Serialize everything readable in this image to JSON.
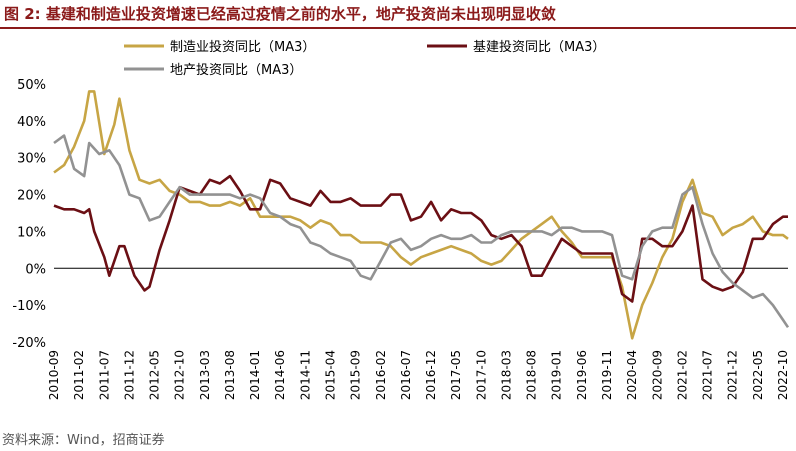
{
  "header": {
    "title": "图 2: 基建和制造业投资增速已经高过疫情之前的水平，地产投资尚未出现明显收敛"
  },
  "footer": {
    "source": "资料来源：Wind，招商证券"
  },
  "chart_data": {
    "type": "line",
    "title": "",
    "xlabel": "",
    "ylabel": "",
    "ylim": [
      -20,
      50
    ],
    "yticks": [
      "50%",
      "40%",
      "30%",
      "20%",
      "10%",
      "0%",
      "-10%",
      "-20%"
    ],
    "ytick_values": [
      50,
      40,
      30,
      20,
      10,
      0,
      -10,
      -20
    ],
    "xticks": [
      "2010-09",
      "2011-02",
      "2011-07",
      "2011-12",
      "2012-05",
      "2012-10",
      "2013-03",
      "2013-08",
      "2014-01",
      "2014-06",
      "2014-11",
      "2015-04",
      "2015-09",
      "2016-02",
      "2016-07",
      "2016-12",
      "2017-05",
      "2017-10",
      "2018-03",
      "2018-08",
      "2019-01",
      "2019-06",
      "2019-11",
      "2020-04",
      "2020-09",
      "2021-02",
      "2021-07",
      "2021-12",
      "2022-05",
      "2022-10"
    ],
    "x_start": "2010-09",
    "x_end": "2022-11",
    "legend_position": "top",
    "grid": false,
    "series": [
      {
        "name": "制造业投资同比（MA3）",
        "color": "#c7a545",
        "points": [
          [
            "2010-09",
            26
          ],
          [
            "2010-11",
            28
          ],
          [
            "2011-01",
            33
          ],
          [
            "2011-03",
            40
          ],
          [
            "2011-04",
            48
          ],
          [
            "2011-05",
            48
          ],
          [
            "2011-07",
            31
          ],
          [
            "2011-09",
            39
          ],
          [
            "2011-10",
            46
          ],
          [
            "2011-12",
            32
          ],
          [
            "2012-02",
            24
          ],
          [
            "2012-04",
            23
          ],
          [
            "2012-06",
            24
          ],
          [
            "2012-08",
            21
          ],
          [
            "2012-10",
            20
          ],
          [
            "2012-12",
            18
          ],
          [
            "2013-02",
            18
          ],
          [
            "2013-04",
            17
          ],
          [
            "2013-06",
            17
          ],
          [
            "2013-08",
            18
          ],
          [
            "2013-10",
            17
          ],
          [
            "2013-12",
            19
          ],
          [
            "2014-02",
            14
          ],
          [
            "2014-04",
            14
          ],
          [
            "2014-06",
            14
          ],
          [
            "2014-08",
            14
          ],
          [
            "2014-10",
            13
          ],
          [
            "2014-12",
            11
          ],
          [
            "2015-02",
            13
          ],
          [
            "2015-04",
            12
          ],
          [
            "2015-06",
            9
          ],
          [
            "2015-08",
            9
          ],
          [
            "2015-10",
            7
          ],
          [
            "2015-12",
            7
          ],
          [
            "2016-02",
            7
          ],
          [
            "2016-04",
            6
          ],
          [
            "2016-06",
            3
          ],
          [
            "2016-08",
            1
          ],
          [
            "2016-10",
            3
          ],
          [
            "2016-12",
            4
          ],
          [
            "2017-02",
            5
          ],
          [
            "2017-04",
            6
          ],
          [
            "2017-06",
            5
          ],
          [
            "2017-08",
            4
          ],
          [
            "2017-10",
            2
          ],
          [
            "2017-12",
            1
          ],
          [
            "2018-02",
            2
          ],
          [
            "2018-04",
            5
          ],
          [
            "2018-06",
            8
          ],
          [
            "2018-08",
            10
          ],
          [
            "2018-10",
            12
          ],
          [
            "2018-12",
            14
          ],
          [
            "2019-02",
            10
          ],
          [
            "2019-04",
            7
          ],
          [
            "2019-06",
            3
          ],
          [
            "2019-08",
            3
          ],
          [
            "2019-10",
            3
          ],
          [
            "2019-12",
            3
          ],
          [
            "2020-02",
            -5
          ],
          [
            "2020-04",
            -19
          ],
          [
            "2020-06",
            -10
          ],
          [
            "2020-08",
            -4
          ],
          [
            "2020-10",
            3
          ],
          [
            "2020-12",
            8
          ],
          [
            "2021-02",
            18
          ],
          [
            "2021-04",
            24
          ],
          [
            "2021-06",
            15
          ],
          [
            "2021-08",
            14
          ],
          [
            "2021-10",
            9
          ],
          [
            "2021-12",
            11
          ],
          [
            "2022-02",
            12
          ],
          [
            "2022-04",
            14
          ],
          [
            "2022-06",
            10
          ],
          [
            "2022-08",
            9
          ],
          [
            "2022-10",
            9
          ],
          [
            "2022-11",
            8
          ]
        ]
      },
      {
        "name": "基建投资同比（MA3）",
        "color": "#6b0f14",
        "points": [
          [
            "2010-09",
            17
          ],
          [
            "2010-11",
            16
          ],
          [
            "2011-01",
            16
          ],
          [
            "2011-03",
            15
          ],
          [
            "2011-04",
            16
          ],
          [
            "2011-05",
            10
          ],
          [
            "2011-07",
            3
          ],
          [
            "2011-08",
            -2
          ],
          [
            "2011-10",
            6
          ],
          [
            "2011-11",
            6
          ],
          [
            "2012-01",
            -2
          ],
          [
            "2012-03",
            -6
          ],
          [
            "2012-04",
            -5
          ],
          [
            "2012-06",
            5
          ],
          [
            "2012-08",
            13
          ],
          [
            "2012-10",
            22
          ],
          [
            "2012-12",
            21
          ],
          [
            "2013-02",
            20
          ],
          [
            "2013-04",
            24
          ],
          [
            "2013-06",
            23
          ],
          [
            "2013-08",
            25
          ],
          [
            "2013-10",
            21
          ],
          [
            "2013-12",
            16
          ],
          [
            "2014-02",
            16
          ],
          [
            "2014-04",
            24
          ],
          [
            "2014-06",
            23
          ],
          [
            "2014-08",
            19
          ],
          [
            "2014-10",
            18
          ],
          [
            "2014-12",
            17
          ],
          [
            "2015-02",
            21
          ],
          [
            "2015-04",
            18
          ],
          [
            "2015-06",
            18
          ],
          [
            "2015-08",
            19
          ],
          [
            "2015-10",
            17
          ],
          [
            "2015-12",
            17
          ],
          [
            "2016-02",
            17
          ],
          [
            "2016-04",
            20
          ],
          [
            "2016-06",
            20
          ],
          [
            "2016-08",
            13
          ],
          [
            "2016-10",
            14
          ],
          [
            "2016-12",
            18
          ],
          [
            "2017-02",
            13
          ],
          [
            "2017-04",
            16
          ],
          [
            "2017-06",
            15
          ],
          [
            "2017-08",
            15
          ],
          [
            "2017-10",
            13
          ],
          [
            "2017-12",
            9
          ],
          [
            "2018-02",
            8
          ],
          [
            "2018-04",
            9
          ],
          [
            "2018-06",
            6
          ],
          [
            "2018-08",
            -2
          ],
          [
            "2018-10",
            -2
          ],
          [
            "2018-12",
            3
          ],
          [
            "2019-02",
            8
          ],
          [
            "2019-04",
            6
          ],
          [
            "2019-06",
            4
          ],
          [
            "2019-08",
            4
          ],
          [
            "2019-10",
            4
          ],
          [
            "2019-12",
            4
          ],
          [
            "2020-02",
            -7
          ],
          [
            "2020-04",
            -9
          ],
          [
            "2020-06",
            8
          ],
          [
            "2020-08",
            8
          ],
          [
            "2020-10",
            6
          ],
          [
            "2020-12",
            6
          ],
          [
            "2021-02",
            10
          ],
          [
            "2021-04",
            17
          ],
          [
            "2021-06",
            -3
          ],
          [
            "2021-08",
            -5
          ],
          [
            "2021-10",
            -6
          ],
          [
            "2021-12",
            -5
          ],
          [
            "2022-02",
            -1
          ],
          [
            "2022-04",
            8
          ],
          [
            "2022-06",
            8
          ],
          [
            "2022-08",
            12
          ],
          [
            "2022-10",
            14
          ],
          [
            "2022-11",
            14
          ]
        ]
      },
      {
        "name": "地产投资同比（MA3）",
        "color": "#929292",
        "points": [
          [
            "2010-09",
            34
          ],
          [
            "2010-11",
            36
          ],
          [
            "2011-01",
            27
          ],
          [
            "2011-03",
            25
          ],
          [
            "2011-04",
            34
          ],
          [
            "2011-06",
            31
          ],
          [
            "2011-08",
            32
          ],
          [
            "2011-10",
            28
          ],
          [
            "2011-12",
            20
          ],
          [
            "2012-02",
            19
          ],
          [
            "2012-04",
            13
          ],
          [
            "2012-06",
            14
          ],
          [
            "2012-08",
            18
          ],
          [
            "2012-10",
            22
          ],
          [
            "2012-12",
            20
          ],
          [
            "2013-02",
            20
          ],
          [
            "2013-04",
            20
          ],
          [
            "2013-06",
            20
          ],
          [
            "2013-08",
            20
          ],
          [
            "2013-10",
            19
          ],
          [
            "2013-12",
            20
          ],
          [
            "2014-02",
            19
          ],
          [
            "2014-04",
            15
          ],
          [
            "2014-06",
            14
          ],
          [
            "2014-08",
            12
          ],
          [
            "2014-10",
            11
          ],
          [
            "2014-12",
            7
          ],
          [
            "2015-02",
            6
          ],
          [
            "2015-04",
            4
          ],
          [
            "2015-06",
            3
          ],
          [
            "2015-08",
            2
          ],
          [
            "2015-10",
            -2
          ],
          [
            "2015-12",
            -3
          ],
          [
            "2016-02",
            2
          ],
          [
            "2016-04",
            7
          ],
          [
            "2016-06",
            8
          ],
          [
            "2016-08",
            5
          ],
          [
            "2016-10",
            6
          ],
          [
            "2016-12",
            8
          ],
          [
            "2017-02",
            9
          ],
          [
            "2017-04",
            8
          ],
          [
            "2017-06",
            8
          ],
          [
            "2017-08",
            9
          ],
          [
            "2017-10",
            7
          ],
          [
            "2017-12",
            7
          ],
          [
            "2018-02",
            9
          ],
          [
            "2018-04",
            10
          ],
          [
            "2018-06",
            10
          ],
          [
            "2018-08",
            10
          ],
          [
            "2018-10",
            10
          ],
          [
            "2018-12",
            9
          ],
          [
            "2019-02",
            11
          ],
          [
            "2019-04",
            11
          ],
          [
            "2019-06",
            10
          ],
          [
            "2019-08",
            10
          ],
          [
            "2019-10",
            10
          ],
          [
            "2019-12",
            9
          ],
          [
            "2020-02",
            -2
          ],
          [
            "2020-04",
            -3
          ],
          [
            "2020-06",
            6
          ],
          [
            "2020-08",
            10
          ],
          [
            "2020-10",
            11
          ],
          [
            "2020-12",
            11
          ],
          [
            "2021-02",
            20
          ],
          [
            "2021-04",
            22
          ],
          [
            "2021-06",
            12
          ],
          [
            "2021-08",
            4
          ],
          [
            "2021-10",
            -1
          ],
          [
            "2021-12",
            -4
          ],
          [
            "2022-02",
            -6
          ],
          [
            "2022-04",
            -8
          ],
          [
            "2022-06",
            -7
          ],
          [
            "2022-08",
            -10
          ],
          [
            "2022-10",
            -14
          ],
          [
            "2022-11",
            -16
          ]
        ]
      }
    ]
  }
}
